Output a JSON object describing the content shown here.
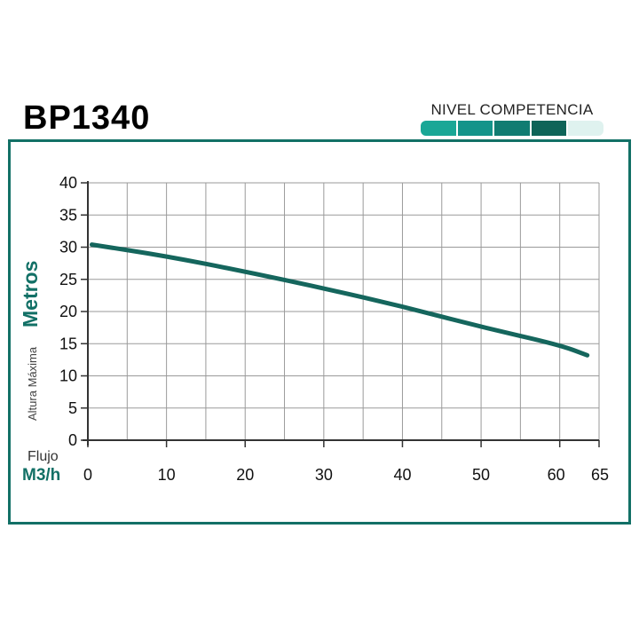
{
  "header": {
    "model": "BP1340",
    "level_label": "NIVEL COMPETENCIA",
    "level_segments": [
      "#1aa796",
      "#14948a",
      "#117c72",
      "#0f6458",
      "#dff2ef"
    ]
  },
  "colors": {
    "frame": "#127066",
    "curve": "#15665d",
    "grid": "#9a9a9a"
  },
  "chart_data": {
    "type": "line",
    "title": "",
    "xlabel": "M3/h",
    "xlabel_prefix": "Flujo",
    "ylabel": "Metros",
    "ylabel_prefix": "Altura Máxima",
    "xlim": [
      0,
      65
    ],
    "ylim": [
      0,
      40
    ],
    "xticks": [
      0,
      10,
      20,
      30,
      40,
      50,
      60,
      65
    ],
    "yticks": [
      0,
      5,
      10,
      15,
      20,
      25,
      30,
      35,
      40
    ],
    "grid": true,
    "series": [
      {
        "values": [
          [
            0.5,
            30.4
          ],
          [
            10,
            28.6
          ],
          [
            20,
            26.2
          ],
          [
            30,
            23.6
          ],
          [
            40,
            20.8
          ],
          [
            50,
            17.6
          ],
          [
            60,
            14.8
          ],
          [
            63.5,
            13.2
          ]
        ]
      }
    ]
  }
}
